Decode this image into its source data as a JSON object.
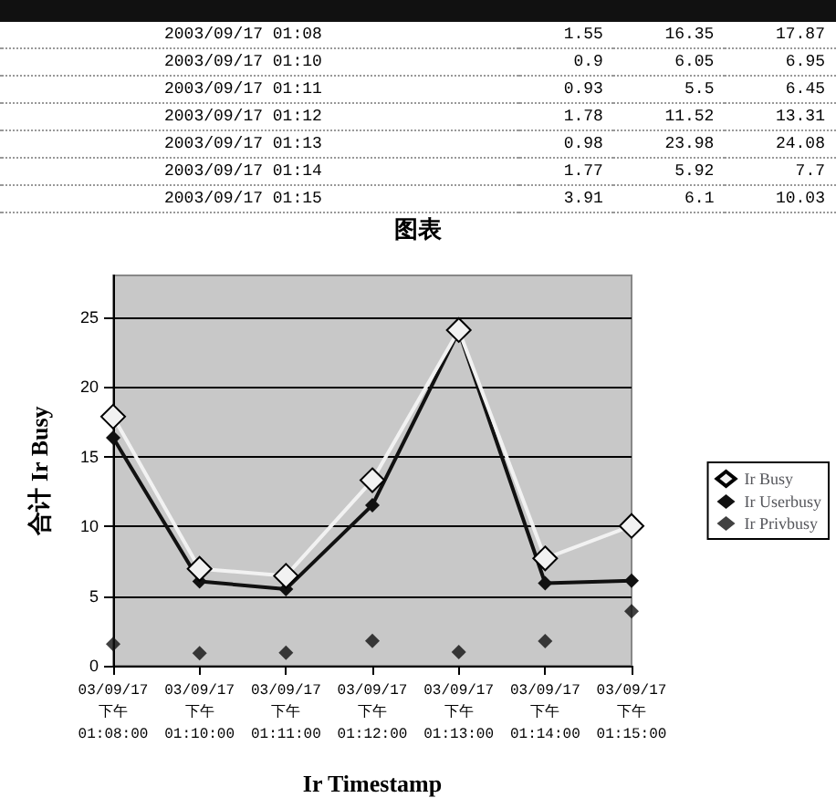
{
  "chart_data": [
    {
      "type": "other",
      "annotations": [
        "2003/09/17 01:08",
        "1.55",
        "16.35",
        "17.87",
        "2003/09/17 01:10",
        "0.9",
        "6.05",
        "6.95",
        "2003/09/17 01:11",
        "0.93",
        "5.5",
        "6.45",
        "2003/09/17 01:12",
        "1.78",
        "11.52",
        "13.31",
        "2003/09/17 01:13",
        "0.98",
        "23.98",
        "24.08",
        "2003/09/17 01:14",
        "1.77",
        "5.92",
        "7.7",
        "2003/09/17 01:15",
        "3.91",
        "6.1",
        "10.03"
      ]
    },
    {
      "type": "line",
      "title": "图表",
      "xlabel": "Ir Timestamp",
      "ylabel": "合计 Ir Busy",
      "categories": [
        "03/09/17 下午 01:08:00",
        "03/09/17 下午 01:10:00",
        "03/09/17 下午 01:11:00",
        "03/09/17 下午 01:12:00",
        "03/09/17 下午 01:13:00",
        "03/09/17 下午 01:14:00",
        "03/09/17 下午 01:15:00"
      ],
      "series": [
        {
          "name": "Ir Busy",
          "color": "#f2f2f2",
          "values": [
            17.87,
            6.95,
            6.45,
            13.31,
            24.08,
            7.7,
            10.03
          ]
        },
        {
          "name": "Ir Userbusy",
          "color": "#111111",
          "values": [
            16.35,
            6.05,
            5.5,
            11.52,
            23.98,
            5.92,
            6.1
          ]
        },
        {
          "name": "Ir Privbusy",
          "color": "#111111",
          "type": "scatter",
          "values": [
            1.55,
            0.9,
            0.93,
            1.78,
            0.98,
            1.77,
            3.91
          ]
        }
      ],
      "ylim": [
        0,
        28
      ],
      "yticks": [
        0,
        5,
        10,
        15,
        20,
        25
      ],
      "grid": "y",
      "legend": "right",
      "marker": "diamond"
    }
  ]
}
